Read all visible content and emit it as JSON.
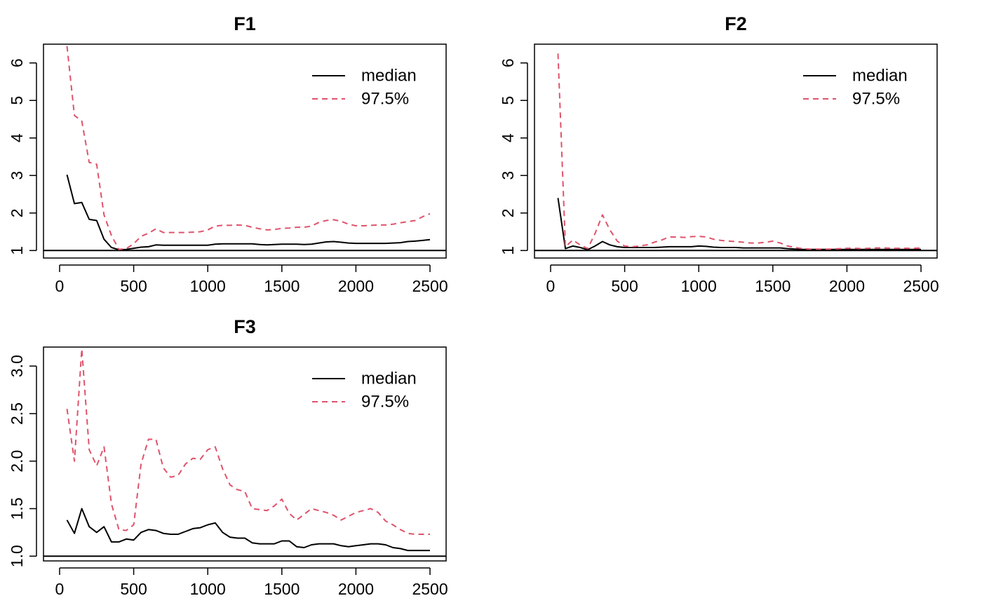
{
  "chart_data": [
    {
      "type": "line",
      "title": "F1",
      "xlim": [
        0,
        2500
      ],
      "ylim": [
        0.8,
        6.5
      ],
      "xticks": [
        0,
        500,
        1000,
        1500,
        2000,
        2500
      ],
      "yticks": [
        1,
        2,
        3,
        4,
        5,
        6
      ],
      "refline": 1,
      "legend": {
        "position": "top-right"
      },
      "series": [
        {
          "name": "median",
          "color": "#000000",
          "dash": "solid",
          "x": [
            50,
            100,
            150,
            200,
            250,
            300,
            350,
            400,
            450,
            500,
            550,
            600,
            650,
            700,
            750,
            800,
            850,
            900,
            950,
            1000,
            1050,
            1100,
            1150,
            1200,
            1250,
            1300,
            1350,
            1400,
            1450,
            1500,
            1550,
            1600,
            1650,
            1700,
            1750,
            1800,
            1850,
            1900,
            1950,
            2000,
            2050,
            2100,
            2150,
            2200,
            2250,
            2300,
            2350,
            2400,
            2450,
            2500
          ],
          "y": [
            3.02,
            2.25,
            2.28,
            1.83,
            1.8,
            1.3,
            1.08,
            1.02,
            1.03,
            1.06,
            1.09,
            1.1,
            1.15,
            1.14,
            1.14,
            1.14,
            1.14,
            1.14,
            1.14,
            1.14,
            1.17,
            1.18,
            1.18,
            1.18,
            1.18,
            1.18,
            1.16,
            1.15,
            1.16,
            1.17,
            1.17,
            1.17,
            1.16,
            1.17,
            1.2,
            1.23,
            1.24,
            1.22,
            1.2,
            1.19,
            1.19,
            1.19,
            1.19,
            1.19,
            1.2,
            1.21,
            1.24,
            1.25,
            1.27,
            1.29
          ]
        },
        {
          "name": "97.5%",
          "color": "#DF536B",
          "dash": "dashed",
          "x": [
            50,
            100,
            150,
            200,
            250,
            300,
            350,
            400,
            450,
            500,
            550,
            600,
            650,
            700,
            750,
            800,
            850,
            900,
            950,
            1000,
            1050,
            1100,
            1150,
            1200,
            1250,
            1300,
            1350,
            1400,
            1450,
            1500,
            1550,
            1600,
            1650,
            1700,
            1750,
            1800,
            1850,
            1900,
            1950,
            2000,
            2050,
            2100,
            2150,
            2200,
            2250,
            2300,
            2350,
            2400,
            2450,
            2500
          ],
          "y": [
            6.45,
            4.6,
            4.45,
            3.35,
            3.3,
            1.95,
            1.4,
            1.03,
            1.05,
            1.18,
            1.38,
            1.46,
            1.58,
            1.48,
            1.48,
            1.48,
            1.48,
            1.49,
            1.5,
            1.55,
            1.65,
            1.67,
            1.67,
            1.68,
            1.67,
            1.62,
            1.58,
            1.55,
            1.56,
            1.59,
            1.6,
            1.62,
            1.62,
            1.65,
            1.75,
            1.8,
            1.82,
            1.78,
            1.7,
            1.66,
            1.66,
            1.67,
            1.68,
            1.68,
            1.7,
            1.74,
            1.77,
            1.8,
            1.9,
            1.98
          ]
        }
      ]
    },
    {
      "type": "line",
      "title": "F2",
      "xlim": [
        0,
        2500
      ],
      "ylim": [
        0.8,
        6.5
      ],
      "xticks": [
        0,
        500,
        1000,
        1500,
        2000,
        2500
      ],
      "yticks": [
        1,
        2,
        3,
        4,
        5,
        6
      ],
      "refline": 1,
      "legend": {
        "position": "top-right"
      },
      "series": [
        {
          "name": "median",
          "color": "#000000",
          "dash": "solid",
          "x": [
            50,
            100,
            150,
            200,
            250,
            300,
            350,
            400,
            450,
            500,
            550,
            600,
            650,
            700,
            750,
            800,
            850,
            900,
            950,
            1000,
            1050,
            1100,
            1150,
            1200,
            1250,
            1300,
            1350,
            1400,
            1450,
            1500,
            1550,
            1600,
            1650,
            1700,
            1750,
            1800,
            1850,
            1900,
            1950,
            2000,
            2050,
            2100,
            2150,
            2200,
            2250,
            2300,
            2350,
            2400,
            2450,
            2500
          ],
          "y": [
            2.4,
            1.05,
            1.12,
            1.08,
            1.02,
            1.12,
            1.24,
            1.15,
            1.1,
            1.08,
            1.08,
            1.08,
            1.08,
            1.08,
            1.09,
            1.1,
            1.1,
            1.1,
            1.1,
            1.12,
            1.11,
            1.09,
            1.08,
            1.08,
            1.08,
            1.07,
            1.07,
            1.07,
            1.07,
            1.07,
            1.07,
            1.05,
            1.04,
            1.03,
            1.03,
            1.03,
            1.03,
            1.03,
            1.03,
            1.03,
            1.03,
            1.03,
            1.03,
            1.03,
            1.03,
            1.03,
            1.03,
            1.03,
            1.03,
            1.03
          ]
        },
        {
          "name": "97.5%",
          "color": "#DF536B",
          "dash": "dashed",
          "x": [
            50,
            100,
            150,
            200,
            250,
            300,
            350,
            400,
            450,
            500,
            550,
            600,
            650,
            700,
            750,
            800,
            850,
            900,
            950,
            1000,
            1050,
            1100,
            1150,
            1200,
            1250,
            1300,
            1350,
            1400,
            1450,
            1500,
            1550,
            1600,
            1650,
            1700,
            1750,
            1800,
            1850,
            1900,
            1950,
            2000,
            2050,
            2100,
            2150,
            2200,
            2250,
            2300,
            2350,
            2400,
            2450,
            2500
          ],
          "y": [
            6.25,
            1.1,
            1.28,
            1.15,
            1.05,
            1.45,
            1.95,
            1.55,
            1.25,
            1.12,
            1.1,
            1.12,
            1.15,
            1.22,
            1.28,
            1.36,
            1.36,
            1.35,
            1.37,
            1.38,
            1.36,
            1.3,
            1.27,
            1.25,
            1.24,
            1.22,
            1.2,
            1.2,
            1.22,
            1.25,
            1.2,
            1.12,
            1.08,
            1.05,
            1.04,
            1.04,
            1.04,
            1.04,
            1.05,
            1.06,
            1.06,
            1.05,
            1.06,
            1.07,
            1.07,
            1.06,
            1.06,
            1.06,
            1.06,
            1.07
          ]
        }
      ]
    },
    {
      "type": "line",
      "title": "F3",
      "xlim": [
        0,
        2500
      ],
      "ylim": [
        0.95,
        3.2
      ],
      "xticks": [
        0,
        500,
        1000,
        1500,
        2000,
        2500
      ],
      "yticks": [
        1.0,
        1.5,
        2.0,
        2.5,
        3.0
      ],
      "ytick_labels": [
        "1.0",
        "1.5",
        "2.0",
        "2.5",
        "3.0"
      ],
      "refline": 1,
      "legend": {
        "position": "top-right"
      },
      "series": [
        {
          "name": "median",
          "color": "#000000",
          "dash": "solid",
          "x": [
            50,
            100,
            150,
            200,
            250,
            300,
            350,
            400,
            450,
            500,
            550,
            600,
            650,
            700,
            750,
            800,
            850,
            900,
            950,
            1000,
            1050,
            1100,
            1150,
            1200,
            1250,
            1300,
            1350,
            1400,
            1450,
            1500,
            1550,
            1600,
            1650,
            1700,
            1750,
            1800,
            1850,
            1900,
            1950,
            2000,
            2050,
            2100,
            2150,
            2200,
            2250,
            2300,
            2350,
            2400,
            2450,
            2500
          ],
          "y": [
            1.38,
            1.24,
            1.5,
            1.31,
            1.25,
            1.31,
            1.15,
            1.15,
            1.18,
            1.17,
            1.25,
            1.28,
            1.27,
            1.24,
            1.23,
            1.23,
            1.26,
            1.29,
            1.3,
            1.33,
            1.35,
            1.25,
            1.2,
            1.19,
            1.19,
            1.14,
            1.13,
            1.13,
            1.13,
            1.16,
            1.16,
            1.1,
            1.09,
            1.12,
            1.13,
            1.13,
            1.13,
            1.11,
            1.1,
            1.11,
            1.12,
            1.13,
            1.13,
            1.12,
            1.09,
            1.08,
            1.06,
            1.06,
            1.06,
            1.06
          ]
        },
        {
          "name": "97.5%",
          "color": "#DF536B",
          "dash": "dashed",
          "x": [
            50,
            100,
            150,
            200,
            250,
            300,
            350,
            400,
            450,
            500,
            550,
            600,
            650,
            700,
            750,
            800,
            850,
            900,
            950,
            1000,
            1050,
            1100,
            1150,
            1200,
            1250,
            1300,
            1350,
            1400,
            1450,
            1500,
            1550,
            1600,
            1650,
            1700,
            1750,
            1800,
            1850,
            1900,
            1950,
            2000,
            2050,
            2100,
            2150,
            2200,
            2250,
            2300,
            2350,
            2400,
            2450,
            2500
          ],
          "y": [
            2.55,
            2.0,
            3.18,
            2.12,
            1.95,
            2.15,
            1.55,
            1.28,
            1.27,
            1.33,
            1.97,
            2.23,
            2.23,
            1.93,
            1.83,
            1.85,
            1.97,
            2.03,
            2.02,
            2.12,
            2.15,
            1.92,
            1.75,
            1.7,
            1.68,
            1.5,
            1.49,
            1.48,
            1.53,
            1.6,
            1.45,
            1.38,
            1.44,
            1.5,
            1.48,
            1.46,
            1.43,
            1.38,
            1.42,
            1.46,
            1.48,
            1.5,
            1.46,
            1.37,
            1.33,
            1.28,
            1.24,
            1.23,
            1.23,
            1.23
          ]
        }
      ]
    }
  ]
}
